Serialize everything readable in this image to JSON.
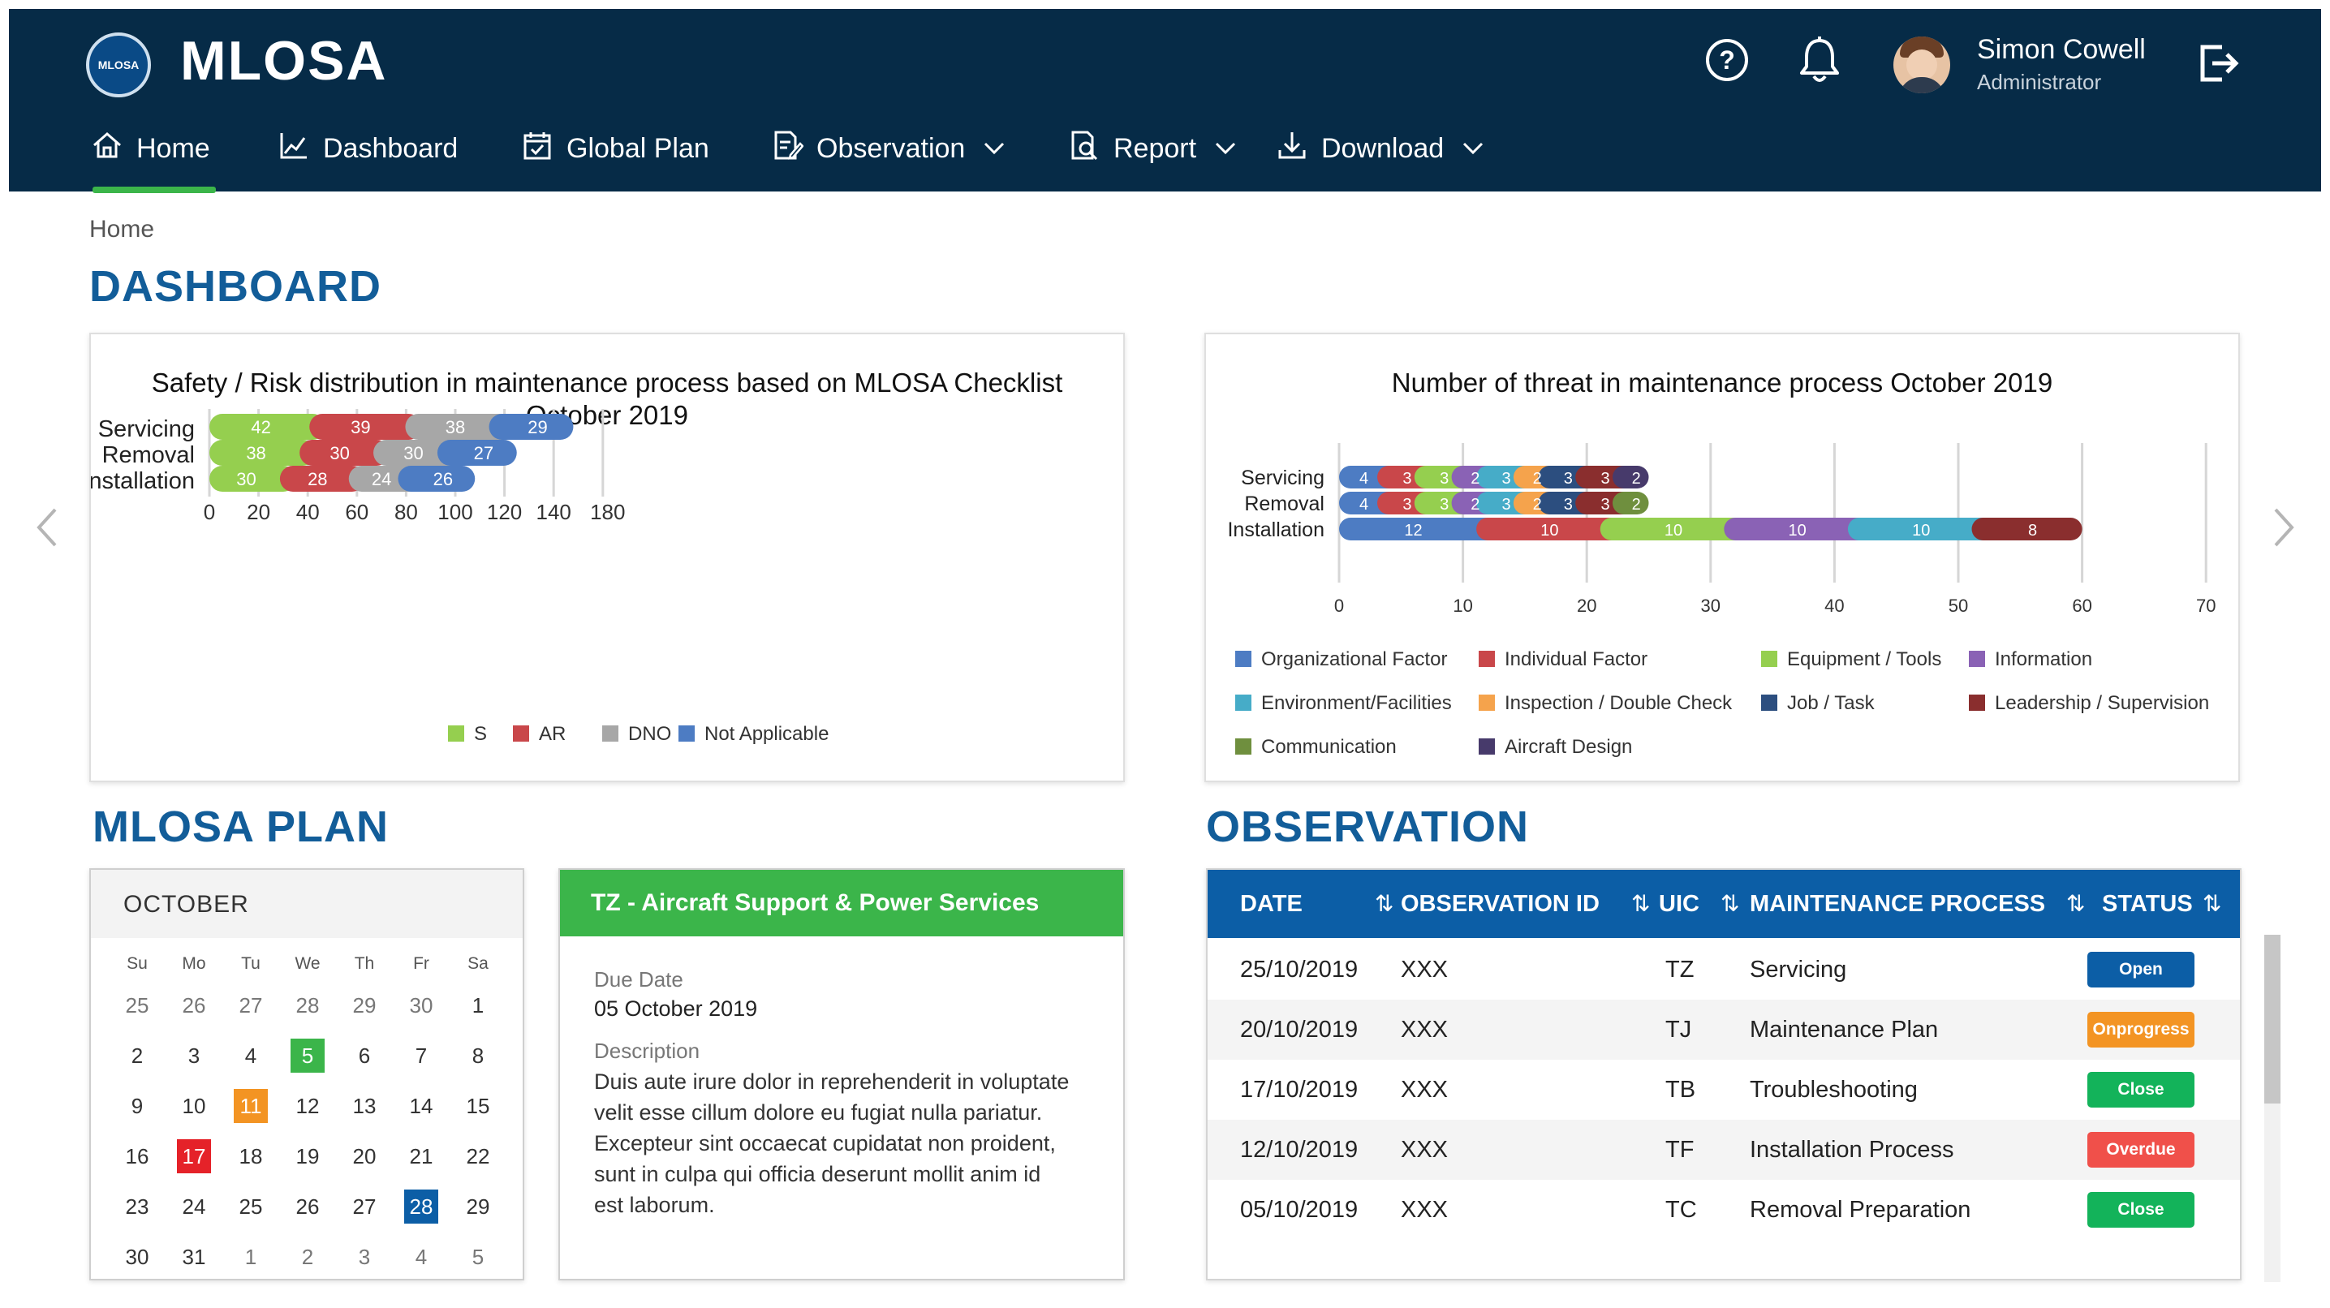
{
  "header": {
    "logo_text": "MLOSA",
    "brand": "MLOSA",
    "user": {
      "name": "Simon Cowell",
      "role": "Administrator"
    },
    "icons": {
      "help": "help-circle-icon",
      "notifications": "bell-icon",
      "logout": "logout-icon"
    }
  },
  "nav": [
    {
      "label": "Home",
      "icon": "home-icon",
      "active": true
    },
    {
      "label": "Dashboard",
      "icon": "chart-line-icon"
    },
    {
      "label": "Global Plan",
      "icon": "calendar-check-icon"
    },
    {
      "label": "Observation",
      "icon": "document-edit-icon",
      "dropdown": true
    },
    {
      "label": "Report",
      "icon": "report-search-icon",
      "dropdown": true
    },
    {
      "label": "Download",
      "icon": "download-icon",
      "dropdown": true
    }
  ],
  "breadcrumb": "Home",
  "sections": {
    "dashboard": "DASHBOARD",
    "plan": "MLOSA PLAN",
    "observation": "OBSERVATION"
  },
  "chart_data": [
    {
      "type": "bar",
      "orientation": "horizontal",
      "stacked": true,
      "title": "Safety / Risk distribution in maintenance process based on MLOSA Checklist",
      "subtitle": "October 2019",
      "categories": [
        "Servicing",
        "Removal",
        "Installation"
      ],
      "series": [
        {
          "name": "S",
          "color": "#95cf4f",
          "values": [
            42,
            38,
            30
          ]
        },
        {
          "name": "AR",
          "color": "#c9474a",
          "values": [
            39,
            30,
            28
          ]
        },
        {
          "name": "DNO",
          "color": "#a7a7a7",
          "values": [
            38,
            30,
            24
          ]
        },
        {
          "name": "Not Applicable",
          "color": "#4d7cc3",
          "values": [
            29,
            27,
            26
          ]
        }
      ],
      "xticks": [
        0,
        20,
        40,
        60,
        80,
        100,
        120,
        140,
        180
      ],
      "xlim": [
        0,
        160
      ],
      "grid": true,
      "legend": "bottom"
    },
    {
      "type": "bar",
      "orientation": "horizontal",
      "stacked": true,
      "title": "Number of threat in maintenance process October 2019",
      "categories": [
        "Servicing",
        "Removal",
        "Installation"
      ],
      "series": [
        {
          "name": "Organizational Factor",
          "color": "#4d7cc3",
          "values": [
            4,
            4,
            12
          ]
        },
        {
          "name": "Individual Factor",
          "color": "#c9474a",
          "values": [
            3,
            3,
            10
          ]
        },
        {
          "name": "Equipment / Tools",
          "color": "#95cf4f",
          "values": [
            3,
            3,
            10
          ]
        },
        {
          "name": "Information",
          "color": "#8a62b5",
          "values": [
            2,
            2,
            10
          ]
        },
        {
          "name": "Environment/Facilities",
          "color": "#46acc8",
          "values": [
            3,
            3,
            10
          ]
        },
        {
          "name": "Inspection / Double Check",
          "color": "#f5a34c",
          "values": [
            2,
            2,
            0
          ]
        },
        {
          "name": "Job / Task",
          "color": "#2c4e7f",
          "values": [
            3,
            3,
            0
          ]
        },
        {
          "name": "Leadership / Supervision",
          "color": "#8a2e2e",
          "values": [
            3,
            3,
            8
          ]
        },
        {
          "name": "Communication",
          "color": "#6f8f3e",
          "values": [
            0,
            2,
            0
          ]
        },
        {
          "name": "Aircraft Design",
          "color": "#473a6b",
          "values": [
            2,
            0,
            0
          ]
        }
      ],
      "xticks": [
        0,
        10,
        20,
        30,
        40,
        50,
        60,
        70
      ],
      "xlim": [
        0,
        70
      ],
      "grid": true,
      "legend": "bottom"
    }
  ],
  "calendar": {
    "month": "OCTOBER",
    "weekdays": [
      "Su",
      "Mo",
      "Tu",
      "We",
      "Th",
      "Fr",
      "Sa"
    ],
    "days": [
      [
        "25",
        "26",
        "27",
        "28",
        "29",
        "30",
        "1"
      ],
      [
        "2",
        "3",
        "4",
        "5",
        "6",
        "7",
        "8"
      ],
      [
        "9",
        "10",
        "11",
        "12",
        "13",
        "14",
        "15"
      ],
      [
        "16",
        "17",
        "18",
        "19",
        "20",
        "21",
        "22"
      ],
      [
        "23",
        "24",
        "25",
        "26",
        "27",
        "28",
        "29"
      ],
      [
        "30",
        "31",
        "1",
        "2",
        "3",
        "4",
        "5"
      ]
    ],
    "highlights": [
      {
        "day": "5",
        "color": "#3bb54a"
      },
      {
        "day": "11",
        "color": "#f39423"
      },
      {
        "day": "17",
        "color": "#e52229"
      },
      {
        "day": "28",
        "color": "#0c5ea6"
      }
    ]
  },
  "plan": {
    "title": "TZ - Aircraft Support & Power Services",
    "due_label": "Due Date",
    "due_value": "05 October 2019",
    "desc_label": "Description",
    "desc_lines": [
      "Duis aute irure dolor in reprehenderit in voluptate",
      "velit esse cillum dolore eu fugiat nulla pariatur.",
      "Excepteur sint occaecat cupidatat non proident,",
      "sunt in culpa qui officia deserunt mollit anim id",
      "est laborum."
    ]
  },
  "observation": {
    "columns": [
      "DATE",
      "OBSERVATION ID",
      "UIC",
      "MAINTENANCE PROCESS",
      "STATUS"
    ],
    "rows": [
      {
        "date": "25/10/2019",
        "id": "XXX",
        "uic": "TZ",
        "process": "Servicing",
        "status": "Open",
        "color": "#0c5ea6"
      },
      {
        "date": "20/10/2019",
        "id": "XXX",
        "uic": "TJ",
        "process": "Maintenance Plan",
        "status": "Onprogress",
        "color": "#f39423"
      },
      {
        "date": "17/10/2019",
        "id": "XXX",
        "uic": "TB",
        "process": "Troubleshooting",
        "status": "Close",
        "color": "#13b35a"
      },
      {
        "date": "12/10/2019",
        "id": "XXX",
        "uic": "TF",
        "process": "Installation Process",
        "status": "Overdue",
        "color": "#f0504a"
      },
      {
        "date": "05/10/2019",
        "id": "XXX",
        "uic": "TC",
        "process": "Removal Preparation",
        "status": "Close",
        "color": "#13b35a"
      }
    ]
  }
}
